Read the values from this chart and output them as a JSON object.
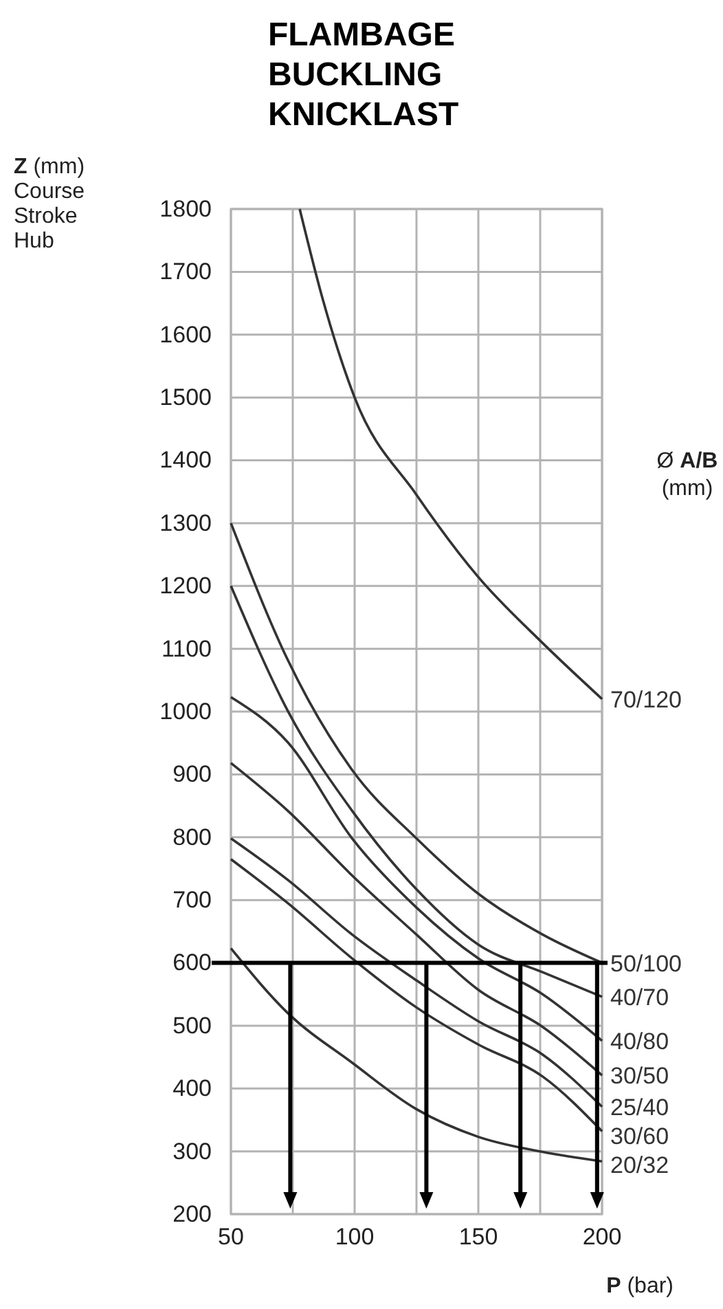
{
  "chart_data": {
    "type": "line",
    "title": "FLAMBAGE\nBUCKLING\nKNICKLAST",
    "xlabel": "P (bar)",
    "ylabel": "Z (mm)\nCourse\nStroke\nHub",
    "legend_title": "Ø A/B\n(mm)",
    "xlim": [
      50,
      200
    ],
    "ylim": [
      200,
      1800
    ],
    "xticks": [
      50,
      {
        "value": 75,
        "label": null
      },
      100,
      {
        "value": 125,
        "label": null
      },
      150,
      {
        "value": 175,
        "label": null
      },
      200
    ],
    "yticks": [
      200,
      300,
      400,
      500,
      600,
      700,
      800,
      900,
      1000,
      1100,
      1200,
      1300,
      1400,
      1500,
      1600,
      1700,
      1800
    ],
    "grid": true,
    "legend": "right",
    "marker": "none",
    "line_style": "solid",
    "series": [
      {
        "name": "70/120",
        "color": "#333333",
        "x": [
          77.8,
          87,
          100,
          125,
          150,
          176,
          200
        ],
        "values": [
          1800,
          1658,
          1500,
          1345,
          1214,
          1109,
          1020
        ]
      },
      {
        "name": "50/100",
        "color": "#333333",
        "x": [
          50,
          73,
          99,
          125,
          150,
          176,
          200
        ],
        "values": [
          1300,
          1082,
          907,
          798,
          710,
          645,
          600
        ]
      },
      {
        "name": "40/70",
        "color": "#333333",
        "x": [
          50,
          73,
          99,
          125,
          150,
          176,
          200
        ],
        "values": [
          1200,
          1001,
          842,
          717,
          629,
          585,
          546
        ]
      },
      {
        "name": "40/80",
        "color": "#333333",
        "x": [
          50,
          73,
          99,
          125,
          150,
          176,
          200
        ],
        "values": [
          1023,
          951,
          798,
          688,
          607,
          550,
          476
        ]
      },
      {
        "name": "30/50",
        "color": "#333333",
        "x": [
          50,
          73,
          99,
          125,
          150,
          176,
          200
        ],
        "values": [
          918,
          842,
          739,
          645,
          557,
          498,
          421
        ]
      },
      {
        "name": "25/40",
        "color": "#333333",
        "x": [
          50,
          73,
          99,
          125,
          150,
          176,
          200
        ],
        "values": [
          798,
          732,
          645,
          572,
          507,
          454,
          371
        ]
      },
      {
        "name": "30/60",
        "color": "#333333",
        "x": [
          50,
          73,
          99,
          125,
          150,
          176,
          200
        ],
        "values": [
          765,
          695,
          607,
          529,
          470,
          419,
          332
        ]
      },
      {
        "name": "20/32",
        "color": "#333333",
        "x": [
          50,
          73,
          99,
          125,
          150,
          176,
          200
        ],
        "values": [
          623,
          520,
          441,
          367,
          323,
          299,
          284
        ]
      }
    ],
    "ref_lines": [
      {
        "axis": "y",
        "value": 600,
        "color": "#000000"
      },
      {
        "axis": "x",
        "value": 74,
        "color": "#000000"
      },
      {
        "axis": "x",
        "value": 129,
        "color": "#000000"
      },
      {
        "axis": "x",
        "value": 167,
        "color": "#000000"
      },
      {
        "axis": "x",
        "value": 198,
        "color": "#000000"
      }
    ]
  }
}
